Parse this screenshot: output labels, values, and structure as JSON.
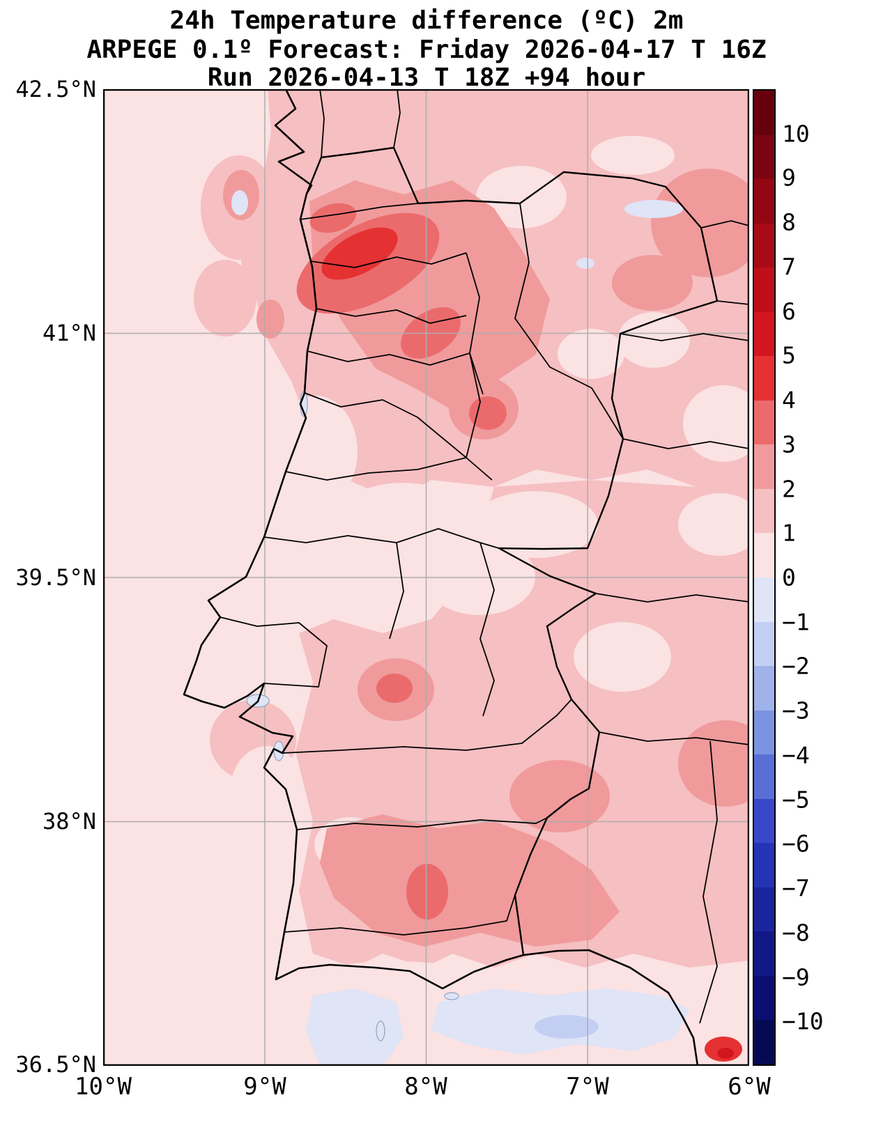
{
  "figure": {
    "title_line1": "24h Temperature difference (ºC) 2m",
    "title_line2": "ARPEGE 0.1º Forecast: Friday 2026-04-17 T 16Z",
    "title_line3": "Run 2026-04-13 T 18Z +94 hour"
  },
  "axes": {
    "y_ticks": [
      "42.5°N",
      "41°N",
      "39.5°N",
      "38°N",
      "36.5°N"
    ],
    "x_ticks": [
      "10°W",
      "9°W",
      "8°W",
      "7°W",
      "6°W"
    ]
  },
  "colorbar": {
    "tick_labels": [
      "10",
      "9",
      "8",
      "7",
      "6",
      "5",
      "4",
      "3",
      "2",
      "1",
      "0",
      "−1",
      "−2",
      "−3",
      "−4",
      "−5",
      "−6",
      "−7",
      "−8",
      "−9",
      "−10"
    ],
    "band_colors": [
      "#67000d",
      "#7c0410",
      "#930713",
      "#a90b16",
      "#bf0e19",
      "#d31520",
      "#e53132",
      "#eb6b6c",
      "#f09a9b",
      "#f6bfc1",
      "#fbe2e3",
      "#dfe4f7",
      "#c3cef3",
      "#a0b2ea",
      "#7b93e0",
      "#5a6fd6",
      "#3848c8",
      "#2434b4",
      "#19249e",
      "#111887",
      "#0a0e70",
      "#060a55"
    ]
  },
  "chart_data": {
    "type": "heatmap",
    "title": "24h Temperature difference (ºC) 2m",
    "subtitle": "ARPEGE 0.1º Forecast: Friday 2026-04-17 T 16Z",
    "run": "Run 2026-04-13 T 18Z +94 hour",
    "model": "ARPEGE 0.1º",
    "valid_time": "Friday 2026-04-17 T 16Z",
    "run_time": "2026-04-13 T 18Z",
    "lead_time": "+94 hour",
    "units": "ºC",
    "x_ticks": [
      "10°W",
      "9°W",
      "8°W",
      "7°W",
      "6°W"
    ],
    "y_ticks": [
      "42.5°N",
      "41°N",
      "39.5°N",
      "38°N",
      "36.5°N"
    ],
    "lon_range": [
      -10,
      -6
    ],
    "lat_range": [
      36.5,
      42.5
    ],
    "colorbar_levels": [
      10,
      9,
      8,
      7,
      6,
      5,
      4,
      3,
      2,
      1,
      0,
      -1,
      -2,
      -3,
      -4,
      -5,
      -6,
      -7,
      -8,
      -9,
      -10
    ],
    "legend_position": "right",
    "grid": true,
    "field_summary": [
      "Widespread warming of +1 to +3 ºC over most of Portugal and western Spain",
      "Local maximum of +4 to +5 ºC over northwest Portugal (Braga / Porto region)",
      "Secondary +3 to +4 ºC patches near Viseu, Santarém and the southern interior",
      "+2 to +3 ºC band across the north and the southern Alentejo",
      "Slight cooling of 0 to −2 ºC along the Algarve and Gulf of Cádiz coast",
      "Small bright warm spot (+4 to +6 ºC) at the far southeast corner of the map"
    ]
  }
}
